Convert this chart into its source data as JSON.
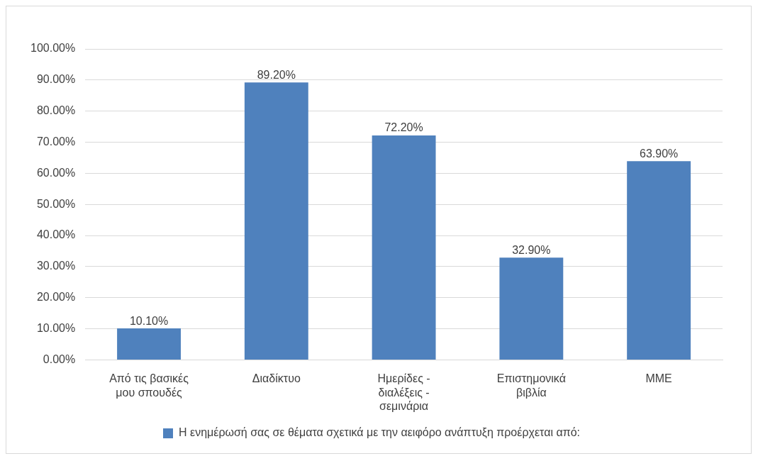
{
  "chart_data": {
    "type": "bar",
    "categories": [
      "Από τις βασικές μου σπουδές",
      "Διαδίκτυο",
      "Ημερίδες - διαλέξεις - σεμινάρια",
      "Επιστημονικά βιβλία",
      "ΜΜΕ"
    ],
    "series": [
      {
        "name": "Η ενημέρωσή σας σε θέματα σχετικά με την αειφόρο ανάπτυξη προέρχεται από:",
        "color": "#4f81bd",
        "values": [
          10.1,
          89.2,
          72.2,
          32.9,
          63.9
        ],
        "value_labels": [
          "10.10%",
          "89.20%",
          "72.20%",
          "32.90%",
          "63.90%"
        ]
      }
    ],
    "ylim": [
      0,
      100
    ],
    "yticks": [
      {
        "value": 0,
        "label": "0.00%"
      },
      {
        "value": 10,
        "label": "10.00%"
      },
      {
        "value": 20,
        "label": "20.00%"
      },
      {
        "value": 30,
        "label": "30.00%"
      },
      {
        "value": 40,
        "label": "40.00%"
      },
      {
        "value": 50,
        "label": "50.00%"
      },
      {
        "value": 60,
        "label": "60.00%"
      },
      {
        "value": 70,
        "label": "70.00%"
      },
      {
        "value": 80,
        "label": "80.00%"
      },
      {
        "value": 90,
        "label": "90.00%"
      },
      {
        "value": 100,
        "label": "100.00%"
      }
    ],
    "grid": "y",
    "legend": "bottom"
  }
}
